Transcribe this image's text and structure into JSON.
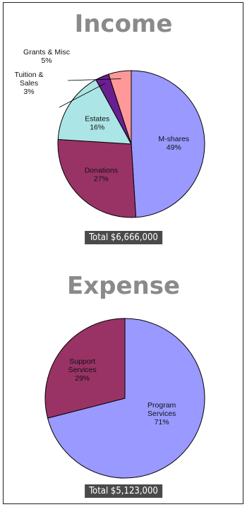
{
  "chart_data": [
    {
      "type": "pie",
      "title": "Income",
      "total_label": "Total $6,666,000",
      "slices": [
        {
          "label": "M-shares",
          "pct_label": "49%",
          "value": 49,
          "color": "#9999ff"
        },
        {
          "label": "Donations",
          "pct_label": "27%",
          "value": 27,
          "color": "#993366"
        },
        {
          "label": "Estates",
          "pct_label": "16%",
          "value": 16,
          "color": "#ace5e5"
        },
        {
          "label": "Tuition & Sales",
          "label_lines": [
            "Tuition &",
            "Sales"
          ],
          "pct_label": "3%",
          "value": 3,
          "color": "#6a1f91"
        },
        {
          "label": "Grants & Misc",
          "pct_label": "5%",
          "value": 5,
          "color": "#ff9999"
        }
      ]
    },
    {
      "type": "pie",
      "title": "Expense",
      "total_label": "Total $5,123,000",
      "slices": [
        {
          "label": "Program Services",
          "label_lines": [
            "Program",
            "Services"
          ],
          "pct_label": "71%",
          "value": 71,
          "color": "#9999ff"
        },
        {
          "label": "Support Services",
          "label_lines": [
            "Support",
            "Services"
          ],
          "pct_label": "29%",
          "value": 29,
          "color": "#993366"
        }
      ]
    }
  ]
}
